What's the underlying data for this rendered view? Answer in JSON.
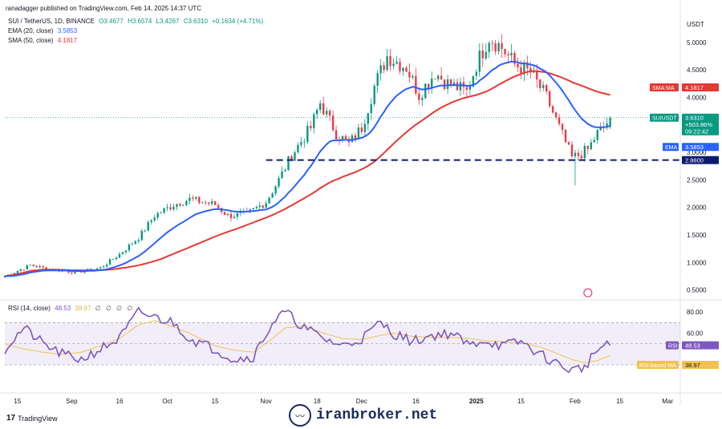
{
  "header": {
    "publisher": "ranadagger published on TradingView.com, Feb 14, 2025 14:37 UTC",
    "symbol": "SUI / TetherUS, 1D, BINANCE",
    "ohlc": {
      "o": "O3.4677",
      "h": "H3.6574",
      "l": "L3.4267",
      "c": "C3.6310",
      "chg": "+0.1634 (+4.71%)"
    },
    "ema_label": "EMA (20, close)",
    "ema_value": "3.5853",
    "sma_label": "SMA (50, close)",
    "sma_value": "4.1817",
    "rsi_label": "RSI (14, close)",
    "rsi_value": "48.53",
    "rsi_ma_value": "38.97",
    "rsi_extra": "∅ ∅ ∅ ∅"
  },
  "footer": {
    "brand": "TradingView",
    "watermark": "iranbroker.net"
  },
  "colors": {
    "up": "#089981",
    "down": "#f23645",
    "ema": "#2962ff",
    "sma": "#e53935",
    "rsi": "#7e57c2",
    "rsi_ma": "#f2c14e",
    "support": "#0d1b6e"
  },
  "chart_data": [
    {
      "type": "candlestick",
      "title": "SUI / TetherUS, 1D, BINANCE",
      "currency": "USDT",
      "ylim": [
        0.35,
        5.55
      ],
      "y_ticks": [
        5.0,
        4.5,
        4.0,
        3.5,
        3.0,
        2.5,
        2.0,
        1.5,
        1.0,
        0.5
      ],
      "y_tick_labels": [
        "5.0000",
        "4.5000",
        "4.0000",
        "3.5000",
        "3.0000",
        "2.5000",
        "2.0000",
        "1.5000",
        "1.0000",
        "0.5000"
      ],
      "x_tick_labels": [
        "15",
        "Sep",
        "16",
        "Oct",
        "15",
        "Nov",
        "18",
        "Dec",
        "16",
        "2025",
        "15",
        "Feb",
        "15",
        "Mar"
      ],
      "x_tick_days": [
        4,
        21,
        36,
        51,
        66,
        82,
        98,
        112,
        129,
        148,
        162,
        179,
        193,
        208
      ],
      "key_points": {
        "days": [
          0,
          8,
          14,
          22,
          30,
          36,
          42,
          47,
          53,
          58,
          66,
          70,
          76,
          82,
          86,
          90,
          96,
          99,
          104,
          108,
          112,
          116,
          120,
          126,
          130,
          135,
          139,
          145,
          148,
          152,
          156,
          160,
          165,
          170,
          174,
          178,
          180,
          183,
          186,
          188,
          190
        ],
        "close": [
          0.75,
          0.95,
          0.88,
          0.82,
          0.9,
          1.15,
          1.45,
          1.85,
          2.05,
          2.15,
          2.05,
          1.85,
          1.88,
          2.1,
          2.5,
          2.95,
          3.45,
          3.9,
          3.35,
          3.15,
          3.45,
          4.2,
          4.75,
          4.55,
          4.05,
          4.45,
          4.25,
          4.1,
          4.6,
          5.1,
          4.9,
          4.6,
          4.45,
          4.0,
          3.45,
          2.9,
          2.95,
          3.05,
          3.35,
          3.45,
          3.63
        ]
      },
      "last_price": {
        "label": "SUIUSDT",
        "value": "3.6310",
        "change": "+503.86%",
        "countdown": "09:22:42"
      },
      "indicators": {
        "ema": {
          "name": "EMA",
          "value": "3.5853"
        },
        "sma": {
          "name": "SMA:MA",
          "value": "4.1817"
        }
      },
      "support_level": {
        "value": 2.86,
        "label": "2.8600"
      }
    },
    {
      "type": "line",
      "title": "RSI (14, close)",
      "ylim": [
        5,
        90
      ],
      "y_ticks": [
        80,
        60
      ],
      "y_tick_labels": [
        "80.00",
        "60.00"
      ],
      "band": [
        30,
        70
      ],
      "key_points": {
        "days": [
          0,
          6,
          12,
          18,
          24,
          30,
          36,
          42,
          47,
          53,
          58,
          62,
          66,
          72,
          78,
          84,
          88,
          94,
          100,
          106,
          112,
          118,
          122,
          128,
          134,
          140,
          146,
          150,
          156,
          162,
          168,
          174,
          178,
          182,
          186,
          190
        ],
        "rsi": [
          45,
          65,
          50,
          40,
          35,
          45,
          55,
          80,
          75,
          70,
          55,
          50,
          45,
          35,
          38,
          70,
          80,
          65,
          55,
          48,
          55,
          70,
          60,
          52,
          58,
          60,
          48,
          54,
          48,
          52,
          40,
          30,
          25,
          28,
          45,
          48.5
        ],
        "ma": [
          50,
          45,
          42,
          40,
          42,
          48,
          55,
          68,
          72,
          66,
          60,
          54,
          48,
          44,
          42,
          55,
          65,
          67,
          60,
          55,
          54,
          58,
          60,
          57,
          56,
          56,
          55,
          53,
          52,
          51,
          47,
          40,
          35,
          32,
          34,
          39
        ]
      },
      "labels": {
        "rsi_name": "RSI",
        "rsi_value": "48.53",
        "ma_name": "RSI-based MA",
        "ma_value": "38.97"
      }
    }
  ]
}
